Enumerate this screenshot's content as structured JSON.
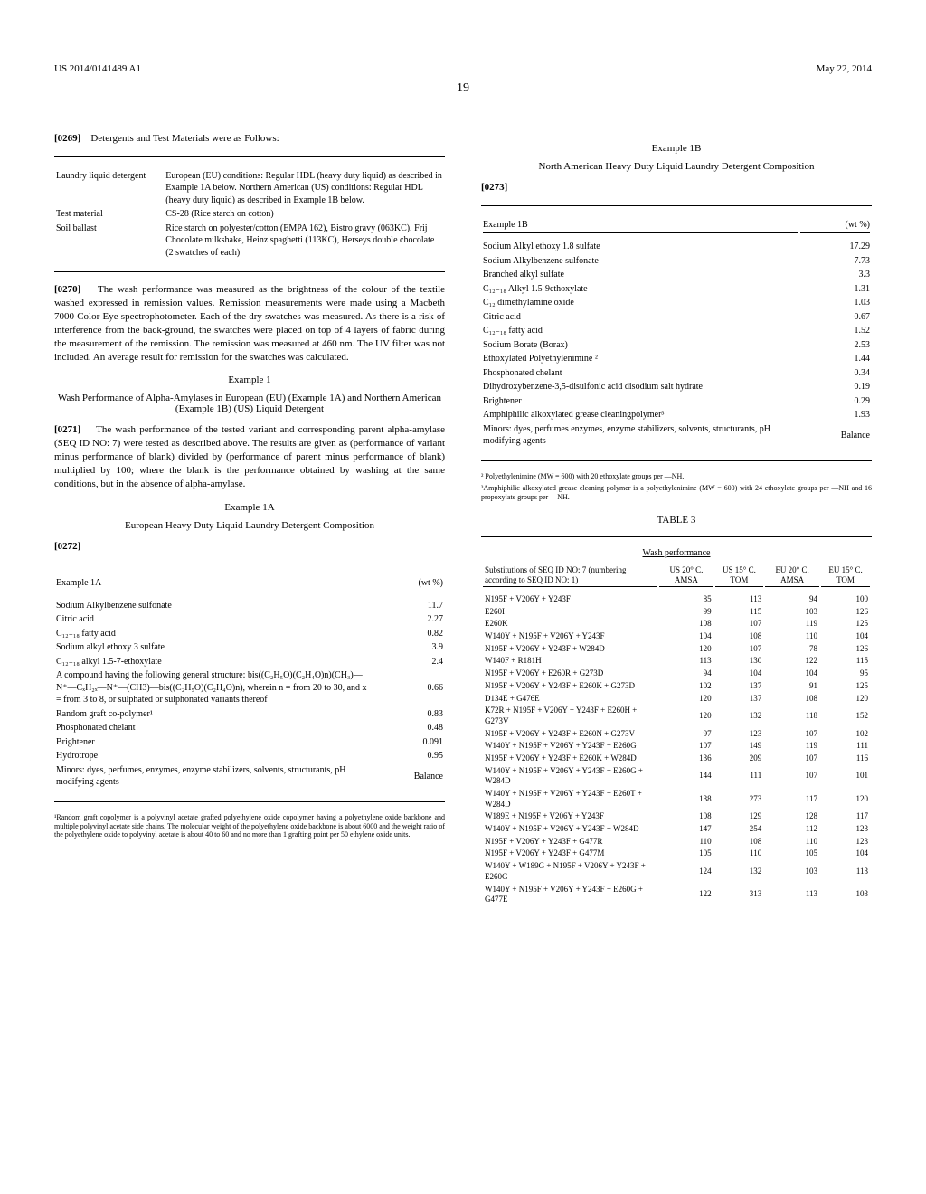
{
  "header": {
    "pubnum": "US 2014/0141489 A1",
    "date": "May 22, 2014",
    "page": "19"
  },
  "p0269": {
    "num": "[0269]",
    "text": "Detergents and Test Materials were as Follows:"
  },
  "detergents_table": {
    "rows": [
      {
        "l": "Laundry liquid detergent",
        "r": "European (EU) conditions: Regular HDL (heavy duty liquid) as described in Example 1A below. Northern American (US) conditions: Regular HDL (heavy duty liquid) as described in Example 1B below."
      },
      {
        "l": "Test material",
        "r": "CS-28 (Rice starch on cotton)"
      },
      {
        "l": "Soil ballast",
        "r": "Rice starch on polyester/cotton (EMPA 162), Bistro gravy (063KC), Frij Chocolate milkshake, Heinz spaghetti (113KC), Herseys double chocolate (2 swatches of each)"
      }
    ]
  },
  "p0270": {
    "num": "[0270]",
    "text": "The wash performance was measured as the brightness of the colour of the textile washed expressed in remission values. Remission measurements were made using a Macbeth 7000 Color Eye spectrophotometer. Each of the dry swatches was measured. As there is a risk of interference from the back-ground, the swatches were placed on top of 4 layers of fabric during the measurement of the remission. The remission was measured at 460 nm. The UV filter was not included. An average result for remission for the swatches was calculated."
  },
  "example1": {
    "title": "Example 1",
    "subtitle": "Wash Performance of Alpha-Amylases in European (EU) (Example 1A) and Northern American (Example 1B) (US) Liquid Detergent"
  },
  "p0271": {
    "num": "[0271]",
    "text": "The wash performance of the tested variant and corresponding parent alpha-amylase (SEQ ID NO: 7) were tested as described above. The results are given as (performance of variant minus performance of blank) divided by (performance of parent minus performance of blank) multiplied by 100; where the blank is the performance obtained by washing at the same conditions, but in the absence of alpha-amylase."
  },
  "example1A": {
    "title": "Example 1A",
    "subtitle": "European Heavy Duty Liquid Laundry Detergent Composition"
  },
  "p0272": {
    "num": "[0272]"
  },
  "comp1A": {
    "header": "Example 1A",
    "unit": "(wt %)",
    "rows": [
      {
        "l": "Sodium Alkylbenzene sulfonate",
        "v": "11.7"
      },
      {
        "l": "Citric acid",
        "v": "2.27"
      },
      {
        "l": "C₁₂₋₁₈ fatty acid",
        "v": "0.82"
      },
      {
        "l": "Sodium alkyl ethoxy 3 sulfate",
        "v": "3.9"
      },
      {
        "l": "C₁₂₋₁₈ alkyl 1.5-7-ethoxylate",
        "v": "2.4"
      },
      {
        "l": "A compound having the following general structure: bis((C₂H₅O)(C₂H₄O)n)(CH₃)—N⁺—CₓH₂ₓ—N⁺—(CH3)—bis((C₂H₅O)(C₂H₄O)n), wherein n = from 20 to 30, and x = from 3 to 8, or sulphated or sulphonated variants thereof",
        "v": "0.66"
      },
      {
        "l": "Random graft co-polymer¹",
        "v": "0.83"
      },
      {
        "l": "Phosphonated chelant",
        "v": "0.48"
      },
      {
        "l": "Brightener",
        "v": "0.091"
      },
      {
        "l": "Hydrotrope",
        "v": "0.95"
      },
      {
        "l": "Minors: dyes, perfumes, enzymes, enzyme stabilizers, solvents, structurants, pH modifying agents",
        "v": "Balance"
      }
    ],
    "footnote": "¹Random graft copolymer is a polyvinyl acetate grafted polyethylene oxide copolymer having a polyethylene oxide backbone and multiple polyvinyl acetate side chains. The molecular weight of the polyethylene oxide backbone is about 6000 and the weight ratio of the polyethylene oxide to polyvinyl acetate is about 40 to 60 and no more than 1 grafting point per 50 ethylene oxide units."
  },
  "example1B": {
    "title": "Example 1B",
    "subtitle": "North American Heavy Duty Liquid Laundry Detergent Composition"
  },
  "p0273": {
    "num": "[0273]"
  },
  "comp1B": {
    "header": "Example 1B",
    "unit": "(wt %)",
    "rows": [
      {
        "l": "Sodium Alkyl ethoxy 1.8 sulfate",
        "v": "17.29"
      },
      {
        "l": "Sodium Alkylbenzene sulfonate",
        "v": "7.73"
      },
      {
        "l": "Branched alkyl sulfate",
        "v": "3.3"
      },
      {
        "l": "C₁₂₋₁₈ Alkyl 1.5-9ethoxylate",
        "v": "1.31"
      },
      {
        "l": "C₁₂ dimethylamine oxide",
        "v": "1.03"
      },
      {
        "l": "Citric acid",
        "v": "0.67"
      },
      {
        "l": "C₁₂₋₁₈ fatty acid",
        "v": "1.52"
      },
      {
        "l": "Sodium Borate (Borax)",
        "v": "2.53"
      },
      {
        "l": "Ethoxylated Polyethylenimine ²",
        "v": "1.44"
      },
      {
        "l": "Phosphonated chelant",
        "v": "0.34"
      },
      {
        "l": "Dihydroxybenzene-3,5-disulfonic acid disodium salt hydrate",
        "v": "0.19"
      },
      {
        "l": "Brightener",
        "v": "0.29"
      },
      {
        "l": "Amphiphilic alkoxylated grease cleaningpolymer³",
        "v": "1.93"
      },
      {
        "l": "Minors: dyes, perfumes enzymes, enzyme stabilizers, solvents, structurants, pH modifying agents",
        "v": "Balance"
      }
    ],
    "footnote2": "² Polyethylenimine (MW = 600) with 20 ethoxylate groups per —NH.",
    "footnote3": "³Amphiphilic alkoxylated grease cleaning polymer is a polyethylenimine (MW = 600) with 24 ethoxylate groups per —NH and 16 propoxylate groups per —NH."
  },
  "table3": {
    "label": "TABLE 3",
    "subtitle": "Wash performance",
    "col_header": {
      "c0": "Substitutions of SEQ ID NO: 7 (numbering according to SEQ ID NO: 1)",
      "c1": "US 20° C. AMSA",
      "c2": "US 15° C. TOM",
      "c3": "EU 20° C. AMSA",
      "c4": "EU 15° C. TOM"
    },
    "rows": [
      {
        "s": "N195F + V206Y + Y243F",
        "v": [
          "85",
          "113",
          "94",
          "100"
        ]
      },
      {
        "s": "E260I",
        "v": [
          "99",
          "115",
          "103",
          "126"
        ]
      },
      {
        "s": "E260K",
        "v": [
          "108",
          "107",
          "119",
          "125"
        ]
      },
      {
        "s": "W140Y + N195F + V206Y + Y243F",
        "v": [
          "104",
          "108",
          "110",
          "104"
        ]
      },
      {
        "s": "N195F + V206Y + Y243F + W284D",
        "v": [
          "120",
          "107",
          "78",
          "126"
        ]
      },
      {
        "s": "W140F + R181H",
        "v": [
          "113",
          "130",
          "122",
          "115"
        ]
      },
      {
        "s": "N195F + V206Y + E260R + G273D",
        "v": [
          "94",
          "104",
          "104",
          "95"
        ]
      },
      {
        "s": "N195F + V206Y + Y243F + E260K + G273D",
        "v": [
          "102",
          "137",
          "91",
          "125"
        ]
      },
      {
        "s": "D134E + G476E",
        "v": [
          "120",
          "137",
          "108",
          "120"
        ]
      },
      {
        "s": "K72R + N195F + V206Y + Y243F + E260H + G273V",
        "v": [
          "120",
          "132",
          "118",
          "152"
        ]
      },
      {
        "s": "N195F + V206Y + Y243F + E260N + G273V",
        "v": [
          "97",
          "123",
          "107",
          "102"
        ]
      },
      {
        "s": "W140Y + N195F + V206Y + Y243F + E260G",
        "v": [
          "107",
          "149",
          "119",
          "111"
        ]
      },
      {
        "s": "N195F + V206Y + Y243F + E260K + W284D",
        "v": [
          "136",
          "209",
          "107",
          "116"
        ]
      },
      {
        "s": "W140Y + N195F + V206Y + Y243F + E260G + W284D",
        "v": [
          "144",
          "111",
          "107",
          "101"
        ]
      },
      {
        "s": "W140Y + N195F + V206Y + Y243F + E260T + W284D",
        "v": [
          "138",
          "273",
          "117",
          "120"
        ]
      },
      {
        "s": "W189E + N195F + V206Y + Y243F",
        "v": [
          "108",
          "129",
          "128",
          "117"
        ]
      },
      {
        "s": "W140Y + N195F + V206Y + Y243F + W284D",
        "v": [
          "147",
          "254",
          "112",
          "123"
        ]
      },
      {
        "s": "N195F + V206Y + Y243F + G477R",
        "v": [
          "110",
          "108",
          "110",
          "123"
        ]
      },
      {
        "s": "N195F + V206Y + Y243F + G477M",
        "v": [
          "105",
          "110",
          "105",
          "104"
        ]
      },
      {
        "s": "W140Y + W189G + N195F + V206Y + Y243F + E260G",
        "v": [
          "124",
          "132",
          "103",
          "113"
        ]
      },
      {
        "s": "W140Y + N195F + V206Y + Y243F + E260G + G477E",
        "v": [
          "122",
          "313",
          "113",
          "103"
        ]
      }
    ]
  }
}
